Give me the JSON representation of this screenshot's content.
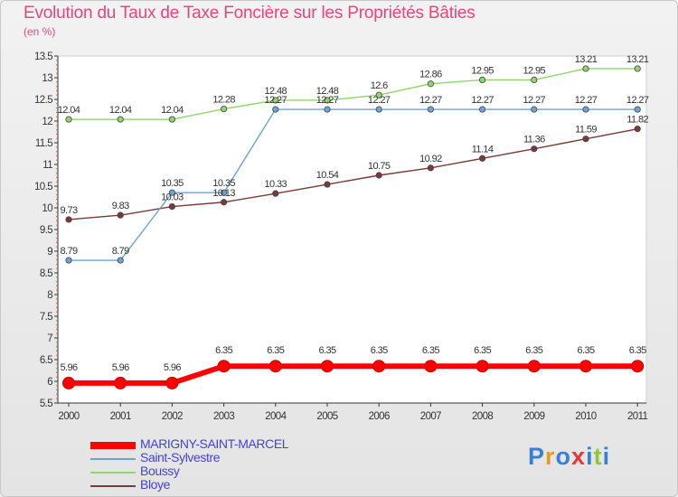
{
  "header": {
    "title": "Evolution du Taux de Taxe Foncière sur les Propriétés Bâties",
    "unit": "(en %)"
  },
  "chart_data": {
    "type": "line",
    "x": [
      "2000",
      "2001",
      "2002",
      "2003",
      "2004",
      "2005",
      "2006",
      "2007",
      "2008",
      "2009",
      "2010",
      "2011"
    ],
    "ylim": [
      5.5,
      13.5
    ],
    "yticks": [
      "5.5",
      "6",
      "6.5",
      "7",
      "7.5",
      "8",
      "8.5",
      "9",
      "9.5",
      "10",
      "10.5",
      "11",
      "11.5",
      "12",
      "12.5",
      "13",
      "13.5"
    ],
    "grid": false,
    "legend_position": "bottom-left",
    "series": [
      {
        "name": "MARIGNY-SAINT-MARCEL",
        "color": "#ff0000",
        "values": [
          5.96,
          5.96,
          5.96,
          6.35,
          6.35,
          6.35,
          6.35,
          6.35,
          6.35,
          6.35,
          6.35,
          6.35
        ],
        "labels": [
          "5.96",
          "5.96",
          "5.96",
          "6.35",
          "6.35",
          "6.35",
          "6.35",
          "6.35",
          "6.35",
          "6.35",
          "6.35",
          "6.35"
        ]
      },
      {
        "name": "Saint-Sylvestre",
        "color": "#6fa3d3",
        "values": [
          8.79,
          8.79,
          10.35,
          10.35,
          12.27,
          12.27,
          12.27,
          12.27,
          12.27,
          12.27,
          12.27,
          12.27
        ],
        "labels": [
          "8.79",
          "8.79",
          "10.35",
          "10.35",
          "12.27",
          "12.27",
          "12.27",
          "12.27",
          "12.27",
          "12.27",
          "12.27",
          "12.27"
        ]
      },
      {
        "name": "Boussy",
        "color": "#92d36e",
        "values": [
          12.04,
          12.04,
          12.04,
          12.28,
          12.48,
          12.48,
          12.6,
          12.86,
          12.95,
          12.95,
          13.21,
          13.21
        ],
        "labels": [
          "12.04",
          "12.04",
          "12.04",
          "12.28",
          "12.48",
          "12.48",
          "12.6",
          "12.86",
          "12.95",
          "12.95",
          "13.21",
          "13.21"
        ]
      },
      {
        "name": "Bloye",
        "color": "#7a3a3a",
        "values": [
          9.73,
          9.83,
          10.03,
          10.13,
          10.33,
          10.54,
          10.75,
          10.92,
          11.14,
          11.36,
          11.59,
          11.82
        ],
        "labels": [
          "9.73",
          "9.83",
          "10.03",
          "10.13",
          "10.33",
          "10.54",
          "10.75",
          "10.92",
          "11.14",
          "11.36",
          "11.59",
          "11.82"
        ]
      }
    ]
  },
  "brand": {
    "letters": [
      "P",
      "r",
      "o",
      "x",
      "i",
      "t",
      "i"
    ],
    "colors": [
      "#3a7fd0",
      "#e39a2a",
      "#3a7fd0",
      "#e03a3a",
      "#3a7fd0",
      "#8dc63f",
      "#3a7fd0"
    ]
  }
}
